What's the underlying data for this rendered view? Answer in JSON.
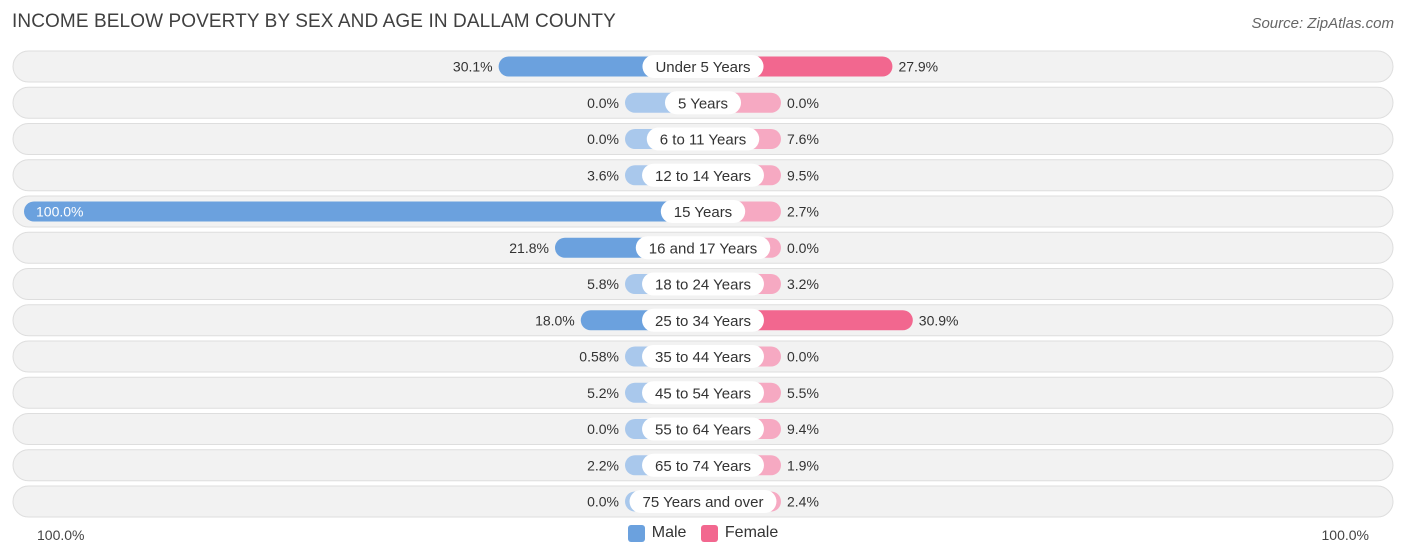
{
  "title": "INCOME BELOW POVERTY BY SEX AND AGE IN DALLAM COUNTY",
  "source": "Source: ZipAtlas.com",
  "colors": {
    "male_light": "#a9c8ec",
    "male_strong": "#6ba1de",
    "female_light": "#f6a9c2",
    "female_strong": "#f2678f",
    "row_bg": "#f2f2f2",
    "row_border": "#dedede"
  },
  "chart_data": {
    "type": "bar",
    "orientation": "horizontal-diverging",
    "title": "INCOME BELOW POVERTY BY SEX AND AGE IN DALLAM COUNTY",
    "categories": [
      "Under 5 Years",
      "5 Years",
      "6 to 11 Years",
      "12 to 14 Years",
      "15 Years",
      "16 and 17 Years",
      "18 to 24 Years",
      "25 to 34 Years",
      "35 to 44 Years",
      "45 to 54 Years",
      "55 to 64 Years",
      "65 to 74 Years",
      "75 Years and over"
    ],
    "series": [
      {
        "name": "Male",
        "values": [
          30.1,
          0.0,
          0.0,
          3.6,
          100.0,
          21.8,
          5.8,
          18.0,
          0.58,
          5.2,
          0.0,
          2.2,
          0.0
        ],
        "labels": [
          "30.1%",
          "0.0%",
          "0.0%",
          "3.6%",
          "100.0%",
          "21.8%",
          "5.8%",
          "18.0%",
          "0.58%",
          "5.2%",
          "0.0%",
          "2.2%",
          "0.0%"
        ]
      },
      {
        "name": "Female",
        "values": [
          27.9,
          0.0,
          7.6,
          9.5,
          2.7,
          0.0,
          3.2,
          30.9,
          0.0,
          5.5,
          9.4,
          1.9,
          2.4
        ],
        "labels": [
          "27.9%",
          "0.0%",
          "7.6%",
          "9.5%",
          "2.7%",
          "0.0%",
          "3.2%",
          "30.9%",
          "0.0%",
          "5.5%",
          "9.4%",
          "1.9%",
          "2.4%"
        ]
      }
    ],
    "xlim": [
      0,
      100
    ],
    "axis_left_label": "100.0%",
    "axis_right_label": "100.0%",
    "legend": [
      "Male",
      "Female"
    ],
    "legend_position": "bottom-center"
  }
}
